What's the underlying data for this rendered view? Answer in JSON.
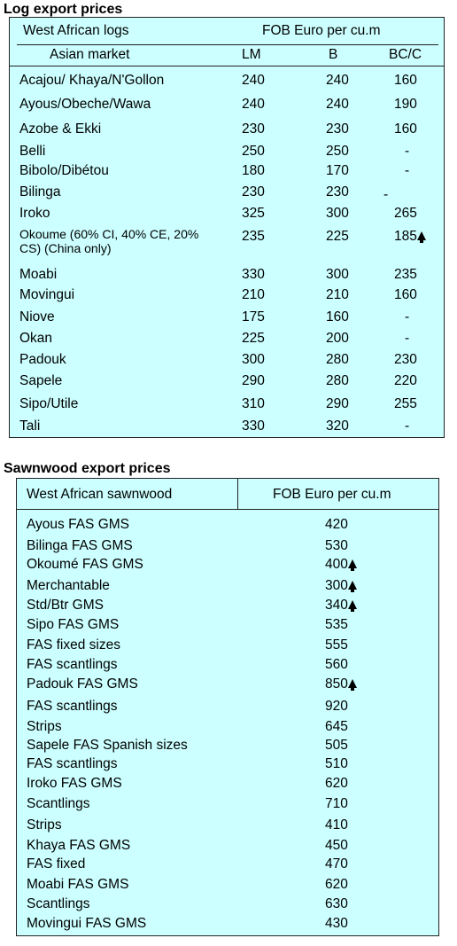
{
  "log_section": {
    "title": "Log export prices",
    "header_left_1": "West African logs",
    "header_left_2": "Asian market",
    "header_right": "FOB Euro per cu.m",
    "col_lm": "LM",
    "col_b": "B",
    "col_bcc": "BC/C",
    "rows": [
      {
        "name": "Acajou/ Khaya/N'Gollon",
        "lm": "240",
        "b": "240",
        "bcc": "160",
        "up": false
      },
      {
        "name": "Ayous/Obeche/Wawa",
        "lm": "240",
        "b": "240",
        "bcc": "190",
        "up": false
      },
      {
        "name": "Azobe & Ekki",
        "lm": "230",
        "b": "230",
        "bcc": "160",
        "up": false
      },
      {
        "name": "Belli",
        "lm": "250",
        "b": "250",
        "bcc": "-",
        "up": false
      },
      {
        "name": "Bibolo/Dibétou",
        "lm": "180",
        "b": "170",
        "bcc": "-",
        "up": false
      },
      {
        "name": "Bilinga",
        "lm": "230",
        "b": "230",
        "bcc": "-",
        "up": false
      },
      {
        "name": "Iroko",
        "lm": "325",
        "b": "300",
        "bcc": "265",
        "up": false
      },
      {
        "name": "Okoume (60% CI, 40% CE, 20% CS) (China only)",
        "lm": "235",
        "b": "225",
        "bcc": "185",
        "up": true
      },
      {
        "name": "Moabi",
        "lm": "330",
        "b": "300",
        "bcc": "235",
        "up": false
      },
      {
        "name": "Movingui",
        "lm": "210",
        "b": "210",
        "bcc": "160",
        "up": false
      },
      {
        "name": "Niove",
        "lm": "175",
        "b": "160",
        "bcc": "-",
        "up": false
      },
      {
        "name": "Okan",
        "lm": "225",
        "b": "200",
        "bcc": "-",
        "up": false
      },
      {
        "name": "Padouk",
        "lm": "300",
        "b": "280",
        "bcc": "230",
        "up": false
      },
      {
        "name": "Sapele",
        "lm": "290",
        "b": "280",
        "bcc": "220",
        "up": false
      },
      {
        "name": "Sipo/Utile",
        "lm": "310",
        "b": "290",
        "bcc": "255",
        "up": false
      },
      {
        "name": "Tali",
        "lm": "330",
        "b": "320",
        "bcc": "-",
        "up": false
      }
    ]
  },
  "sawn_section": {
    "title": "Sawnwood export prices",
    "header_left": "West African sawnwood",
    "header_right": "FOB Euro per cu.m",
    "rows": [
      {
        "name": "Ayous FAS GMS",
        "price": "420",
        "up": false
      },
      {
        "name": "Bilinga FAS GMS",
        "price": "530",
        "up": false
      },
      {
        "name": "Okoumé FAS GMS",
        "price": "400",
        "up": true
      },
      {
        "name": "Merchantable",
        "price": "300",
        "up": true
      },
      {
        "name": "Std/Btr GMS",
        "price": "340",
        "up": true
      },
      {
        "name": "Sipo FAS GMS",
        "price": "535",
        "up": false
      },
      {
        "name": "FAS fixed sizes",
        "price": "555",
        "up": false
      },
      {
        "name": "FAS scantlings",
        "price": "560",
        "up": false
      },
      {
        "name": "Padouk FAS GMS",
        "price": "850",
        "up": true
      },
      {
        "name": "FAS scantlings",
        "price": "920",
        "up": false
      },
      {
        "name": "Strips",
        "price": "645",
        "up": false
      },
      {
        "name": "Sapele FAS Spanish sizes",
        "price": "505",
        "up": false
      },
      {
        "name": "FAS scantlings",
        "price": "510",
        "up": false
      },
      {
        "name": "Iroko FAS GMS",
        "price": "620",
        "up": false
      },
      {
        "name": "Scantlings",
        "price": "710",
        "up": false
      },
      {
        "name": "Strips",
        "price": "410",
        "up": false
      },
      {
        "name": "Khaya FAS GMS",
        "price": "450",
        "up": false
      },
      {
        "name": "FAS fixed",
        "price": "470",
        "up": false
      },
      {
        "name": "Moabi FAS GMS",
        "price": "620",
        "up": false
      },
      {
        "name": "Scantlings",
        "price": "630",
        "up": false
      },
      {
        "name": "Movingui FAS GMS",
        "price": "430",
        "up": false
      }
    ]
  },
  "colors": {
    "table_bg": "#ccffff",
    "border": "#222222"
  }
}
